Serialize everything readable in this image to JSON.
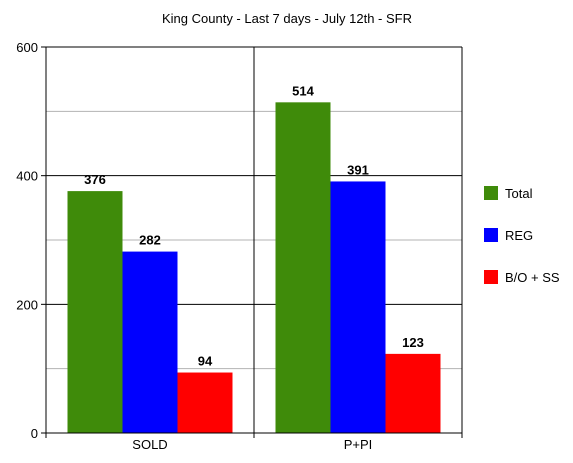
{
  "chart_data": {
    "type": "bar",
    "title": "King County - Last 7 days - July 12th - SFR",
    "xlabel": "",
    "ylabel": "",
    "categories": [
      "SOLD",
      "P+PI"
    ],
    "series": [
      {
        "name": "Total",
        "color": "#3f8b0a",
        "values": [
          376,
          514
        ]
      },
      {
        "name": "REG",
        "color": "#0000ff",
        "values": [
          282,
          391
        ]
      },
      {
        "name": "B/O + SS",
        "color": "#ff0000",
        "values": [
          94,
          123
        ]
      }
    ],
    "ylim": [
      0,
      600
    ],
    "yticks": [
      0,
      200,
      400,
      600
    ],
    "grid": true,
    "legend_position": "right"
  }
}
